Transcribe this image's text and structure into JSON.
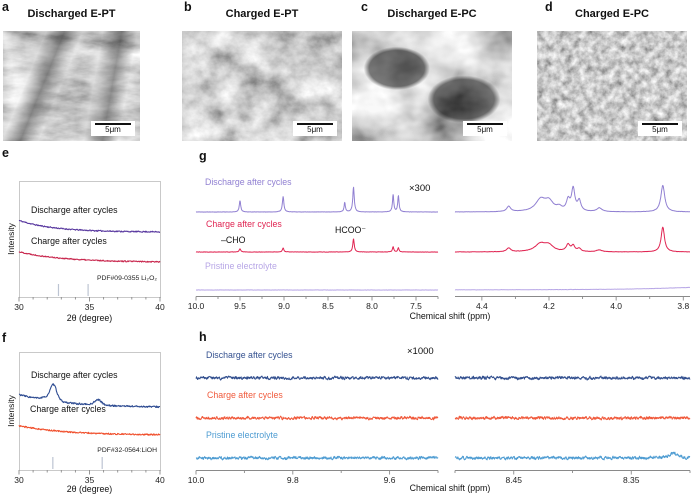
{
  "sem_panels": [
    {
      "label": "a",
      "title": "Discharged E-PT",
      "scale_bar": "5μm"
    },
    {
      "label": "b",
      "title": "Charged E-PT",
      "scale_bar": "5μm"
    },
    {
      "label": "c",
      "title": "Discharged E-PC",
      "scale_bar": "5μm"
    },
    {
      "label": "d",
      "title": "Charged E-PC",
      "scale_bar": "5μm"
    }
  ],
  "chart_data": [
    {
      "id": "e",
      "panel_label": "e",
      "type": "line",
      "subtype": "xrd",
      "xlabel": "2θ (degree)",
      "ylabel": "Intensity",
      "xlim": [
        30,
        40
      ],
      "x_major_ticks": [
        "30",
        "35",
        "40"
      ],
      "x_minor_step": 1,
      "grid": false,
      "series": [
        {
          "name": "Discharge after cycles",
          "color": "#5a3aa0",
          "baseline": {
            "start": 0.66,
            "end": 0.56,
            "decay": 4.0
          },
          "peaks": [],
          "noise": 0.01,
          "seed": 11
        },
        {
          "name": "Charge after cycles",
          "color": "#c92a50",
          "baseline": {
            "start": 0.39,
            "end": 0.3,
            "decay": 3.2
          },
          "peaks": [],
          "noise": 0.01,
          "seed": 22
        }
      ],
      "reference": {
        "label": "PDF#09-0355 Li₂O₂",
        "two_theta": [
          32.8,
          34.9
        ],
        "tick_color": "#bcc4d2"
      }
    },
    {
      "id": "f",
      "panel_label": "f",
      "type": "line",
      "subtype": "xrd",
      "xlabel": "2θ (degree)",
      "ylabel": "Intensity",
      "xlim": [
        30,
        40
      ],
      "x_major_ticks": [
        "30",
        "35",
        "40"
      ],
      "x_minor_step": 1,
      "grid": false,
      "series": [
        {
          "name": "Discharge after cycles",
          "color": "#2e4c92",
          "baseline": {
            "start": 0.64,
            "end": 0.53,
            "decay": 3.0
          },
          "peaks": [
            {
              "c": 32.45,
              "h": 0.115,
              "w": 0.22
            },
            {
              "c": 32.2,
              "h": 0.03,
              "w": 0.5
            },
            {
              "c": 35.6,
              "h": 0.045,
              "w": 0.25
            }
          ],
          "noise": 0.014,
          "seed": 33
        },
        {
          "name": "Charge after cycles",
          "color": "#f04f2c",
          "baseline": {
            "start": 0.375,
            "end": 0.295,
            "decay": 3.0
          },
          "peaks": [],
          "noise": 0.012,
          "seed": 44
        }
      ],
      "reference": {
        "label": "PDF#32-0564:LiOH",
        "two_theta": [
          32.4,
          35.9
        ],
        "tick_color": "#bcc4d2"
      }
    },
    {
      "id": "g",
      "panel_label": "g",
      "type": "line",
      "subtype": "nmr",
      "xlabel": "Chemical shift (ppm)",
      "magnification": "×300",
      "annotations": [
        {
          "text": "–CHO",
          "ppm": 9.5
        },
        {
          "text": "HCOO⁻",
          "ppm": 8.21
        }
      ],
      "axes": [
        {
          "xlim": [
            10.0,
            7.25
          ],
          "major_ticks": [
            "10.0",
            "9.5",
            "9.0",
            "8.5",
            "8.0",
            "7.5"
          ],
          "minor_step": 0.25
        },
        {
          "xlim": [
            4.48,
            3.78
          ],
          "major_ticks": [
            "4.4",
            "4.2",
            "4.0",
            "3.8"
          ],
          "minor_step": 0.1
        }
      ],
      "series": [
        {
          "name": "Discharge after cycles",
          "color": "#9180d2",
          "noise": 0.006,
          "seed": 5,
          "peaks": [
            [
              {
                "c": 9.5,
                "h": 0.36,
                "w": 0.01
              },
              {
                "c": 9.01,
                "h": 0.5,
                "w": 0.01
              },
              {
                "c": 8.31,
                "h": 0.3,
                "w": 0.009
              },
              {
                "c": 8.21,
                "h": 0.8,
                "w": 0.01
              },
              {
                "c": 7.76,
                "h": 0.55,
                "w": 0.009
              },
              {
                "c": 7.7,
                "h": 0.52,
                "w": 0.009
              }
            ],
            [
              {
                "c": 4.32,
                "h": 0.17,
                "w": 0.007
              },
              {
                "c": 4.225,
                "h": 0.38,
                "w": 0.018
              },
              {
                "c": 4.2,
                "h": 0.3,
                "w": 0.015
              },
              {
                "c": 4.17,
                "h": 0.12,
                "w": 0.01
              },
              {
                "c": 4.143,
                "h": 0.34,
                "w": 0.006
              },
              {
                "c": 4.128,
                "h": 0.72,
                "w": 0.006
              },
              {
                "c": 4.11,
                "h": 0.33,
                "w": 0.006
              },
              {
                "c": 4.05,
                "h": 0.12,
                "w": 0.009
              },
              {
                "c": 3.861,
                "h": 0.85,
                "w": 0.007
              }
            ]
          ]
        },
        {
          "name": "Charge after cycles",
          "color": "#e02552",
          "noise": 0.008,
          "seed": 6,
          "peaks": [
            [
              {
                "c": 9.5,
                "h": 0.1,
                "w": 0.01
              },
              {
                "c": 9.01,
                "h": 0.13,
                "w": 0.01
              },
              {
                "c": 8.21,
                "h": 0.42,
                "w": 0.01
              },
              {
                "c": 7.76,
                "h": 0.17,
                "w": 0.009
              },
              {
                "c": 7.7,
                "h": 0.14,
                "w": 0.009
              }
            ],
            [
              {
                "c": 4.32,
                "h": 0.12,
                "w": 0.007
              },
              {
                "c": 4.225,
                "h": 0.26,
                "w": 0.02
              },
              {
                "c": 4.2,
                "h": 0.18,
                "w": 0.015
              },
              {
                "c": 4.143,
                "h": 0.22,
                "w": 0.007
              },
              {
                "c": 4.128,
                "h": 0.18,
                "w": 0.006
              },
              {
                "c": 4.11,
                "h": 0.1,
                "w": 0.006
              },
              {
                "c": 4.05,
                "h": 0.06,
                "w": 0.01
              },
              {
                "c": 3.861,
                "h": 0.8,
                "w": 0.006
              }
            ]
          ]
        },
        {
          "name": "Pristine electrolyte",
          "color": "#b7a6e6",
          "noise": 0.006,
          "seed": 7,
          "peaks": [
            [],
            [
              {
                "c": 3.7,
                "h": 0.1,
                "w": 0.18
              }
            ]
          ]
        }
      ]
    },
    {
      "id": "h",
      "panel_label": "h",
      "type": "line",
      "subtype": "nmr",
      "xlabel": "Chemical shift (ppm)",
      "magnification": "×1000",
      "annotations": [],
      "axes": [
        {
          "xlim": [
            10.0,
            9.5
          ],
          "major_ticks": [
            "10.0",
            "9.8",
            "9.6"
          ],
          "minor_step": 0.1
        },
        {
          "xlim": [
            8.5,
            8.3
          ],
          "major_ticks": [
            "8.45",
            "8.35"
          ],
          "minor_step": 0.05
        }
      ],
      "series": [
        {
          "name": "Discharge after cycles",
          "color": "#33508f",
          "noise": 0.075,
          "seed": 13,
          "peaks": [
            [],
            []
          ]
        },
        {
          "name": "Charge after cycles",
          "color": "#f05a3c",
          "noise": 0.075,
          "seed": 14,
          "peaks": [
            [],
            []
          ]
        },
        {
          "name": "Pristine electrolyte",
          "color": "#4e9cd2",
          "noise": 0.075,
          "seed": 15,
          "peaks": [
            [],
            [
              {
                "c": 8.314,
                "h": 0.16,
                "w": 0.004
              }
            ]
          ]
        }
      ]
    }
  ]
}
